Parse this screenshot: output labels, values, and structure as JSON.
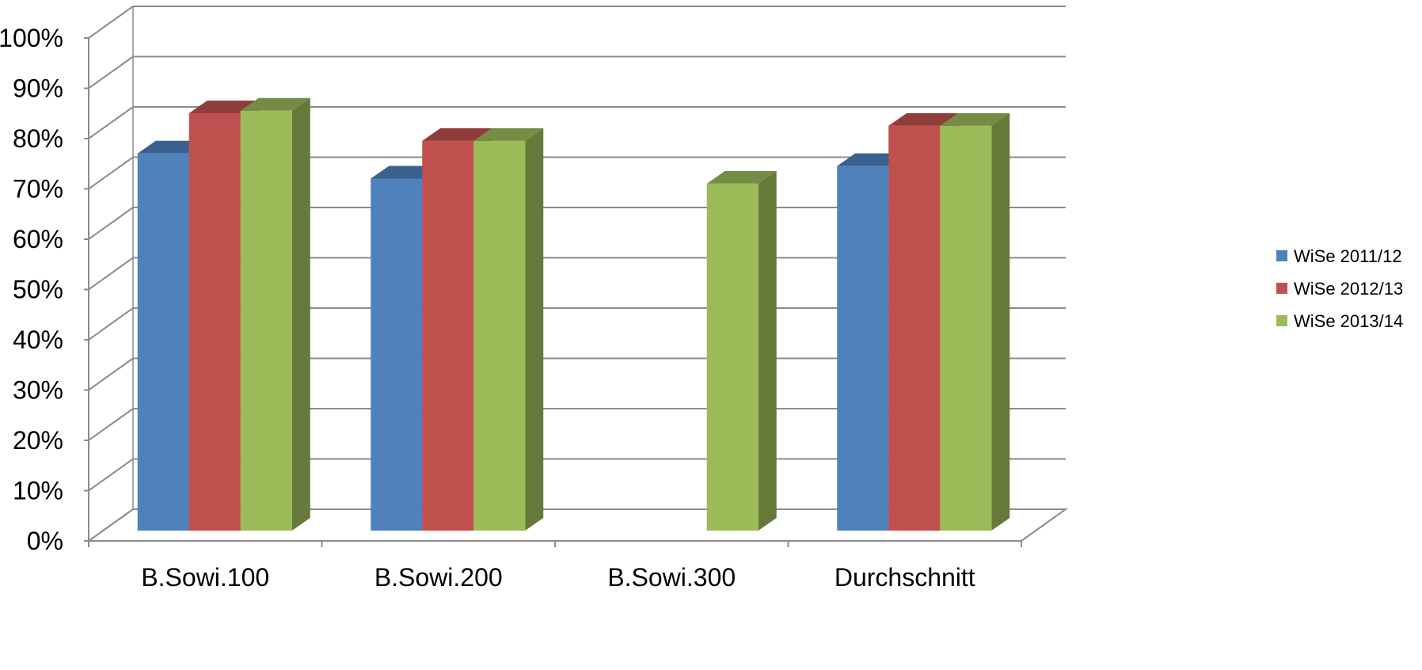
{
  "chart_data": {
    "type": "bar",
    "title": "",
    "xlabel": "",
    "ylabel": "",
    "categories": [
      "B.Sowi.100",
      "B.Sowi.200",
      "B.Sowi.300",
      "Durchschnitt"
    ],
    "series": [
      {
        "name": "WiSe 2011/12",
        "color": "#4F81BD",
        "values": [
          75,
          70,
          null,
          72.5
        ]
      },
      {
        "name": "WiSe 2012/13",
        "color": "#C0504D",
        "values": [
          83,
          77.5,
          null,
          80.5
        ]
      },
      {
        "name": "WiSe 2013/14",
        "color": "#9BBB59",
        "values": [
          83.5,
          77.5,
          69,
          80.5
        ]
      }
    ],
    "ylim": [
      0,
      100
    ],
    "yticks": [
      "0%",
      "10%",
      "20%",
      "30%",
      "40%",
      "50%",
      "60%",
      "70%",
      "80%",
      "90%",
      "100%"
    ],
    "grid": true,
    "style": "3d-clustered-column",
    "legend": "right"
  }
}
